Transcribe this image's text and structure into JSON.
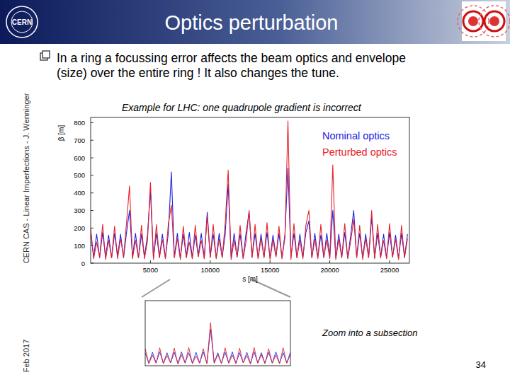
{
  "slide": {
    "title": "Optics perturbation",
    "logo_text": "CERN",
    "bullet_lines": [
      "In a ring a focussing error affects the beam optics and envelope",
      "(size) over the entire ring ! It also changes the tune."
    ],
    "caption": "Example for LHC: one quadrupole gradient is incorrect",
    "zoom_caption": "Zoom into a subsection",
    "side_text": "CERN CAS - Linear Imperfections - J. Wenninger",
    "date": "Feb 2017",
    "page": "34"
  },
  "chart_data": [
    {
      "type": "line",
      "x_label": "s [m]",
      "y_label": "β [m]",
      "x": [
        0,
        250,
        500,
        750,
        1000,
        1250,
        1500,
        1750,
        2000,
        2250,
        2500,
        2750,
        3000,
        3250,
        3500,
        3750,
        4000,
        4250,
        4500,
        4750,
        5000,
        5250,
        5500,
        5750,
        6000,
        6250,
        6500,
        6750,
        7000,
        7250,
        7500,
        7750,
        8000,
        8250,
        8500,
        8750,
        9000,
        9250,
        9500,
        9750,
        10000,
        10250,
        10500,
        10750,
        11000,
        11250,
        11500,
        11750,
        12000,
        12250,
        12500,
        12750,
        13000,
        13250,
        13500,
        13750,
        14000,
        14250,
        14500,
        14750,
        15000,
        15250,
        15500,
        15750,
        16000,
        16250,
        16500,
        16750,
        17000,
        17250,
        17500,
        17750,
        18000,
        18250,
        18500,
        18750,
        19000,
        19250,
        19500,
        19750,
        20000,
        20250,
        20500,
        20750,
        21000,
        21250,
        21500,
        21750,
        22000,
        22250,
        22500,
        22750,
        23000,
        23250,
        23500,
        23750,
        24000,
        24250,
        24500,
        24750,
        25000,
        25250,
        25500,
        25750,
        26000,
        26250,
        26500
      ],
      "series": [
        {
          "name": "Nominal optics",
          "color": "#2222e0",
          "values": [
            170,
            35,
            165,
            30,
            175,
            35,
            160,
            30,
            170,
            40,
            165,
            30,
            175,
            300,
            35,
            170,
            30,
            165,
            35,
            160,
            410,
            30,
            170,
            35,
            165,
            30,
            175,
            520,
            35,
            170,
            30,
            165,
            35,
            175,
            30,
            160,
            40,
            170,
            30,
            290,
            35,
            165,
            30,
            170,
            35,
            160,
            450,
            30,
            170,
            35,
            165,
            30,
            175,
            290,
            35,
            170,
            30,
            165,
            35,
            175,
            30,
            160,
            40,
            170,
            30,
            165,
            540,
            35,
            170,
            30,
            165,
            35,
            175,
            240,
            30,
            170,
            35,
            160,
            30,
            170,
            35,
            300,
            30,
            165,
            35,
            175,
            30,
            160,
            300,
            35,
            170,
            30,
            165,
            35,
            260,
            30,
            170,
            35,
            165,
            30,
            175,
            35,
            160,
            30,
            170,
            35,
            165
          ]
        },
        {
          "name": "Perturbed optics",
          "color": "#e8202a",
          "values": [
            200,
            25,
            120,
            35,
            220,
            20,
            130,
            30,
            210,
            25,
            140,
            35,
            230,
            440,
            25,
            130,
            30,
            215,
            25,
            125,
            460,
            20,
            220,
            30,
            135,
            25,
            225,
            330,
            30,
            140,
            20,
            210,
            30,
            120,
            25,
            215,
            35,
            130,
            25,
            270,
            30,
            220,
            25,
            135,
            30,
            225,
            530,
            20,
            130,
            35,
            215,
            25,
            125,
            300,
            30,
            220,
            25,
            140,
            30,
            230,
            20,
            130,
            35,
            210,
            25,
            145,
            810,
            20,
            225,
            30,
            130,
            25,
            215,
            300,
            30,
            135,
            25,
            220,
            35,
            130,
            25,
            560,
            20,
            135,
            30,
            225,
            25,
            125,
            250,
            30,
            215,
            20,
            140,
            30,
            300,
            25,
            220,
            30,
            130,
            25,
            225,
            35,
            135,
            20,
            215,
            30,
            140
          ]
        }
      ],
      "xlim": [
        0,
        26659
      ],
      "ylim": [
        0,
        830
      ],
      "xticks": [
        5000,
        10000,
        15000,
        20000,
        25000
      ],
      "yticks": [
        0,
        100,
        200,
        300,
        400,
        500,
        600,
        700,
        800
      ],
      "legend": "upper right",
      "grid": false
    },
    {
      "type": "line",
      "x": [
        9000,
        9150,
        9300,
        9450,
        9600,
        9750,
        9900,
        10050,
        10200,
        10350,
        10500,
        10650,
        10800,
        10950,
        11100,
        11250,
        11400,
        11550,
        11700,
        11850,
        12000,
        12150,
        12300,
        12450,
        12600,
        12750,
        12900,
        13050,
        13200,
        13350,
        13500,
        13650,
        13800,
        13950,
        14100,
        14250,
        14400,
        14550,
        14700,
        14850,
        15000
      ],
      "series": [
        {
          "color": "#2222e0",
          "values": [
            160,
            30,
            165,
            35,
            170,
            30,
            160,
            35,
            165,
            30,
            170,
            35,
            160,
            30,
            165,
            35,
            170,
            30,
            450,
            35,
            160,
            30,
            165,
            35,
            170,
            30,
            160,
            35,
            165,
            30,
            170,
            35,
            160,
            30,
            165,
            35,
            170,
            30,
            160,
            35,
            165
          ]
        },
        {
          "color": "#e8202a",
          "values": [
            210,
            25,
            130,
            30,
            220,
            25,
            125,
            35,
            215,
            20,
            135,
            30,
            225,
            25,
            120,
            30,
            210,
            25,
            530,
            30,
            135,
            25,
            220,
            30,
            130,
            25,
            215,
            35,
            125,
            20,
            225,
            30,
            135,
            25,
            210,
            30,
            130,
            25,
            220,
            30,
            140
          ]
        }
      ],
      "xlim": [
        9000,
        15000
      ],
      "ylim": [
        0,
        800
      ],
      "tick_labels": false,
      "grid": false
    }
  ]
}
